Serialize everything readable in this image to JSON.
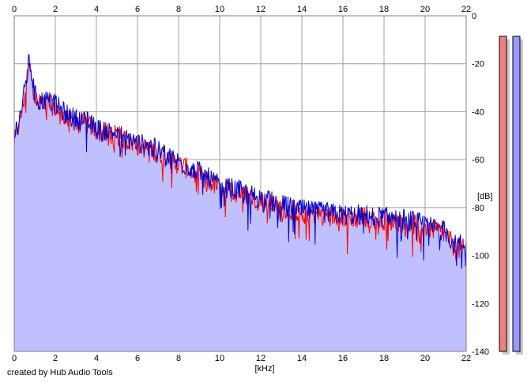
{
  "footer": {
    "credit": "created by Hub Audio Tools"
  },
  "colors": {
    "fill": "#c0c0ff",
    "channel_left": "#ff0000",
    "channel_right": "#0000cc",
    "grid": "#a0a0a0",
    "meter_left": "#f08080",
    "meter_right": "#9999ff"
  },
  "chart_data": {
    "type": "line",
    "title": "",
    "xlabel": "[kHz]",
    "ylabel": "[dB]",
    "xlim": [
      0,
      22
    ],
    "ylim": [
      -140,
      0
    ],
    "x_ticks": [
      "0",
      "2",
      "4",
      "6",
      "8",
      "10",
      "12",
      "14",
      "16",
      "18",
      "20",
      "22"
    ],
    "y_ticks": [
      "0",
      "-20",
      "-40",
      "-60",
      "-80",
      "-100",
      "-120",
      "-140"
    ],
    "grid": true,
    "series": [
      {
        "channel": "left",
        "color": "#ff0000",
        "x": [
          0,
          0.3,
          0.5,
          0.7,
          0.8,
          1.0,
          1.2,
          1.5,
          2.0,
          2.5,
          3.0,
          3.5,
          4.0,
          5.0,
          6.0,
          7.0,
          8.0,
          9.0,
          10.0,
          11.0,
          12.0,
          13.0,
          14.0,
          15.0,
          16.0,
          17.0,
          18.0,
          19.0,
          20.0,
          21.0,
          21.5,
          22.0
        ],
        "values": [
          -53,
          -43,
          -34,
          -21,
          -22,
          -34,
          -37,
          -36,
          -38,
          -42,
          -44,
          -45,
          -48,
          -50,
          -54,
          -57,
          -62,
          -66,
          -72,
          -74,
          -77,
          -80,
          -82,
          -83,
          -84,
          -84,
          -85,
          -86,
          -88,
          -91,
          -98,
          -97
        ]
      },
      {
        "channel": "right",
        "color": "#0000cc",
        "x": [
          0,
          0.3,
          0.5,
          0.7,
          0.8,
          1.0,
          1.2,
          1.5,
          2.0,
          2.5,
          3.0,
          3.5,
          4.0,
          5.0,
          6.0,
          7.0,
          8.0,
          9.0,
          10.0,
          11.0,
          12.0,
          13.0,
          14.0,
          15.0,
          16.0,
          17.0,
          18.0,
          19.0,
          20.0,
          21.0,
          21.5,
          22.0
        ],
        "values": [
          -50,
          -41,
          -32,
          -20,
          -21,
          -33,
          -36,
          -35,
          -37,
          -41,
          -43,
          -44,
          -47,
          -49,
          -53,
          -56,
          -61,
          -65,
          -71,
          -73,
          -76,
          -79,
          -81,
          -82,
          -83,
          -83,
          -84,
          -85,
          -87,
          -90,
          -96,
          -95
        ]
      }
    ],
    "meters": [
      {
        "channel": "left",
        "color": "#f08080"
      },
      {
        "channel": "right",
        "color": "#9999ff"
      }
    ]
  }
}
